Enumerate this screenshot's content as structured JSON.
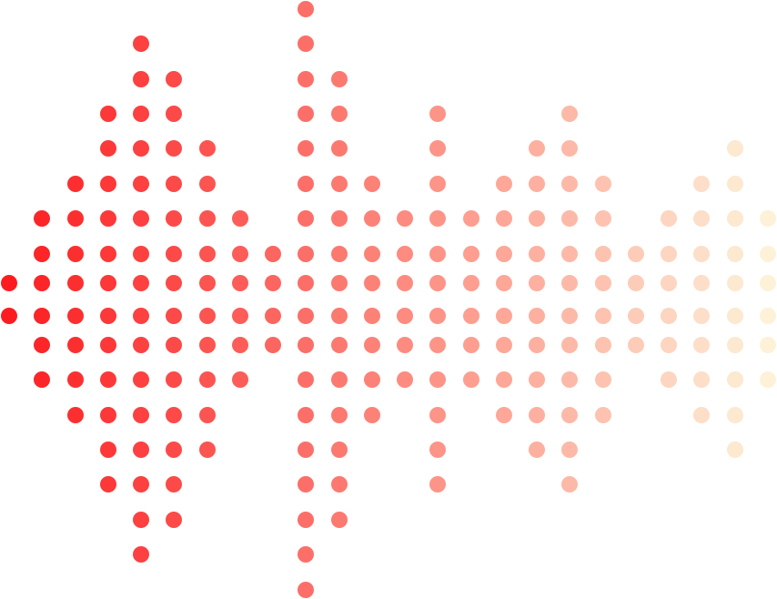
{
  "graphic": {
    "type": "dot-matrix-sound-wave",
    "color_start": "#fc1c20",
    "color_end": "#fdf1d8",
    "row_count": 18,
    "column_row_ranges": [
      [
        8,
        9
      ],
      [
        6,
        11
      ],
      [
        5,
        12
      ],
      [
        3,
        14
      ],
      [
        1,
        16
      ],
      [
        2,
        15
      ],
      [
        4,
        13
      ],
      [
        6,
        11
      ],
      [
        7,
        10
      ],
      [
        0,
        17
      ],
      [
        2,
        15
      ],
      [
        5,
        12
      ],
      [
        6,
        11
      ],
      [
        3,
        14
      ],
      [
        6,
        11
      ],
      [
        5,
        12
      ],
      [
        4,
        13
      ],
      [
        3,
        14
      ],
      [
        5,
        12
      ],
      [
        7,
        10
      ],
      [
        6,
        11
      ],
      [
        5,
        12
      ],
      [
        4,
        13
      ],
      [
        6,
        11
      ]
    ]
  }
}
